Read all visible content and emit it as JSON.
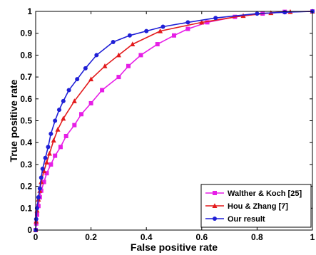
{
  "chart_data": {
    "type": "line",
    "xlabel": "False positive rate",
    "ylabel": "True positive rate",
    "xlim": [
      0,
      1
    ],
    "ylim": [
      0,
      1
    ],
    "xticks": [
      "0",
      "0.2",
      "0.4",
      "0.6",
      "0.8",
      "1"
    ],
    "yticks": [
      "0",
      "0.1",
      "0.2",
      "0.3",
      "0.4",
      "0.5",
      "0.6",
      "0.7",
      "0.8",
      "0.9",
      "1"
    ],
    "grid": false,
    "legend_position": "bottom-right",
    "series": [
      {
        "name": "Walther & Koch [25]",
        "color": "#e61ee6",
        "marker": "square",
        "points": [
          [
            0,
            0
          ],
          [
            0.002,
            0.03
          ],
          [
            0.005,
            0.07
          ],
          [
            0.01,
            0.11
          ],
          [
            0.015,
            0.15
          ],
          [
            0.02,
            0.18
          ],
          [
            0.03,
            0.22
          ],
          [
            0.04,
            0.26
          ],
          [
            0.055,
            0.3
          ],
          [
            0.07,
            0.34
          ],
          [
            0.09,
            0.38
          ],
          [
            0.11,
            0.43
          ],
          [
            0.14,
            0.48
          ],
          [
            0.165,
            0.53
          ],
          [
            0.2,
            0.58
          ],
          [
            0.24,
            0.64
          ],
          [
            0.3,
            0.7
          ],
          [
            0.335,
            0.75
          ],
          [
            0.38,
            0.8
          ],
          [
            0.44,
            0.85
          ],
          [
            0.5,
            0.89
          ],
          [
            0.55,
            0.92
          ],
          [
            0.62,
            0.95
          ],
          [
            0.72,
            0.975
          ],
          [
            0.82,
            0.99
          ],
          [
            0.9,
            0.998
          ],
          [
            1,
            1
          ]
        ]
      },
      {
        "name": "Hou & Zhang [7]",
        "color": "#e31a1c",
        "marker": "triangle",
        "points": [
          [
            0,
            0
          ],
          [
            0.002,
            0.04
          ],
          [
            0.005,
            0.09
          ],
          [
            0.01,
            0.14
          ],
          [
            0.015,
            0.18
          ],
          [
            0.02,
            0.22
          ],
          [
            0.03,
            0.27
          ],
          [
            0.04,
            0.31
          ],
          [
            0.05,
            0.35
          ],
          [
            0.065,
            0.41
          ],
          [
            0.08,
            0.46
          ],
          [
            0.1,
            0.51
          ],
          [
            0.14,
            0.59
          ],
          [
            0.2,
            0.69
          ],
          [
            0.25,
            0.75
          ],
          [
            0.3,
            0.8
          ],
          [
            0.35,
            0.85
          ],
          [
            0.45,
            0.91
          ],
          [
            0.6,
            0.95
          ],
          [
            0.75,
            0.98
          ],
          [
            0.85,
            0.993
          ],
          [
            0.92,
            0.998
          ],
          [
            1,
            1
          ]
        ]
      },
      {
        "name": "Our result",
        "color": "#1f1fd6",
        "marker": "circle",
        "points": [
          [
            0,
            0
          ],
          [
            0.002,
            0.05
          ],
          [
            0.005,
            0.1
          ],
          [
            0.01,
            0.15
          ],
          [
            0.015,
            0.19
          ],
          [
            0.02,
            0.24
          ],
          [
            0.025,
            0.28
          ],
          [
            0.035,
            0.33
          ],
          [
            0.045,
            0.38
          ],
          [
            0.055,
            0.44
          ],
          [
            0.07,
            0.5
          ],
          [
            0.085,
            0.55
          ],
          [
            0.1,
            0.59
          ],
          [
            0.12,
            0.64
          ],
          [
            0.15,
            0.69
          ],
          [
            0.18,
            0.74
          ],
          [
            0.22,
            0.8
          ],
          [
            0.28,
            0.86
          ],
          [
            0.34,
            0.89
          ],
          [
            0.4,
            0.91
          ],
          [
            0.46,
            0.93
          ],
          [
            0.55,
            0.95
          ],
          [
            0.65,
            0.97
          ],
          [
            0.8,
            0.99
          ],
          [
            0.9,
            0.996
          ],
          [
            1,
            1
          ]
        ]
      }
    ]
  }
}
